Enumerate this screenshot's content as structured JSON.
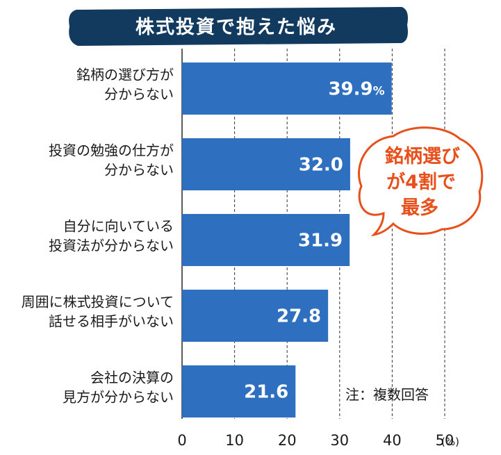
{
  "colors": {
    "bar": "#2e6fbf",
    "title_bg": "#123a5f",
    "callout_border": "#e8501b",
    "callout_text": "#e8501b",
    "grid": "#333333"
  },
  "chart_data": {
    "type": "bar",
    "orientation": "horizontal",
    "title": "株式投資で抱えた悩み",
    "categories": [
      [
        "銘柄の選び方が",
        "分からない"
      ],
      [
        "投資の勉強の仕方が",
        "分からない"
      ],
      [
        "自分に向いている",
        "投資法が分からない"
      ],
      [
        "周囲に株式投資について",
        "話せる相手がいない"
      ],
      [
        "会社の決算の",
        "見方が分からない"
      ]
    ],
    "values": [
      39.9,
      32.0,
      31.9,
      27.8,
      21.6
    ],
    "value_labels": [
      "39.9",
      "32.0",
      "31.9",
      "27.8",
      "21.6"
    ],
    "first_value_unit": "%",
    "xlim": [
      0,
      50
    ],
    "xticks": [
      "0",
      "10",
      "20",
      "30",
      "40",
      "50"
    ],
    "x_unit": "(%)",
    "grid": true,
    "note": "注：複数回答",
    "callout": [
      "銘柄選び",
      "が4割で",
      "最多"
    ]
  }
}
